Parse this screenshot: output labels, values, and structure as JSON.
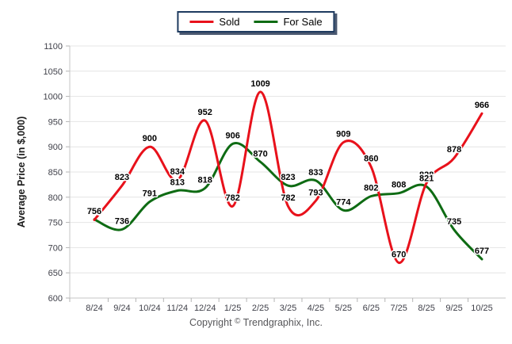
{
  "chart_data": {
    "type": "line",
    "categories": [
      "8/24",
      "9/24",
      "10/24",
      "11/24",
      "12/24",
      "1/25",
      "2/25",
      "3/25",
      "4/25",
      "5/25",
      "6/25",
      "7/25",
      "8/25",
      "9/25",
      "10/25"
    ],
    "series": [
      {
        "name": "Sold",
        "color": "#e8111b",
        "values": [
          755,
          823,
          900,
          834,
          952,
          782,
          1009,
          782,
          793,
          909,
          860,
          670,
          828,
          878,
          966
        ]
      },
      {
        "name": "For Sale",
        "color": "#0e6b13",
        "values": [
          756,
          736,
          791,
          813,
          818,
          906,
          870,
          823,
          833,
          774,
          802,
          808,
          821,
          735,
          677
        ]
      }
    ],
    "title": "",
    "xlabel": "",
    "ylabel": "Average Price (in $,000)",
    "ylim": [
      600,
      1100
    ],
    "yticks": [
      600,
      650,
      700,
      750,
      800,
      850,
      900,
      950,
      1000,
      1050,
      1100
    ],
    "grid": true,
    "legend_position": "top-center",
    "smoothing": "spline",
    "point_labels": true
  },
  "footer": {
    "prefix": "Copyright",
    "symbol": "©",
    "company": "Trendgraphix, Inc."
  }
}
